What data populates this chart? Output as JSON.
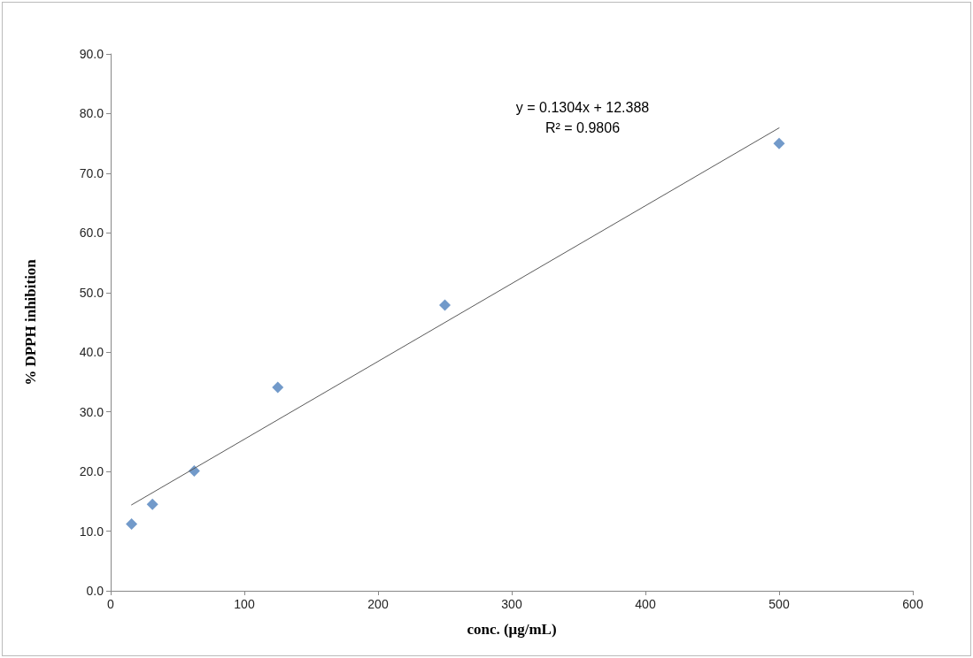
{
  "chart_data": {
    "type": "scatter",
    "xlabel": "conc. (μg/mL)",
    "ylabel": "% DPPH inhibition",
    "xlim": [
      0,
      600
    ],
    "xticks": [
      0,
      100,
      200,
      300,
      400,
      500,
      600
    ],
    "ylim": [
      0,
      90
    ],
    "yticks": [
      {
        "value": 0,
        "label": "0.0"
      },
      {
        "value": 10,
        "label": "10.0"
      },
      {
        "value": 20,
        "label": "20.0"
      },
      {
        "value": 30,
        "label": "30.0"
      },
      {
        "value": 40,
        "label": "40.0"
      },
      {
        "value": 50,
        "label": "50.0"
      },
      {
        "value": 60,
        "label": "60.0"
      },
      {
        "value": 70,
        "label": "70.0"
      },
      {
        "value": 80,
        "label": "80.0"
      },
      {
        "value": 90,
        "label": "90.0"
      }
    ],
    "series": [
      {
        "color": "#4f81bd",
        "marker": "diamond",
        "x": [
          15.625,
          31.25,
          62.5,
          125,
          250,
          500
        ],
        "values": [
          11.2,
          14.5,
          20.1,
          34.1,
          47.9,
          75.0
        ]
      },
      {
        "type": "line",
        "color": "#595959",
        "marker": "none",
        "line_style": "solid",
        "x": [
          15.625,
          500
        ],
        "values": [
          14.4,
          77.6
        ]
      }
    ],
    "annotations": [
      "y = 0.1304x + 12.388",
      "R² = 0.9806"
    ],
    "grid": false
  }
}
